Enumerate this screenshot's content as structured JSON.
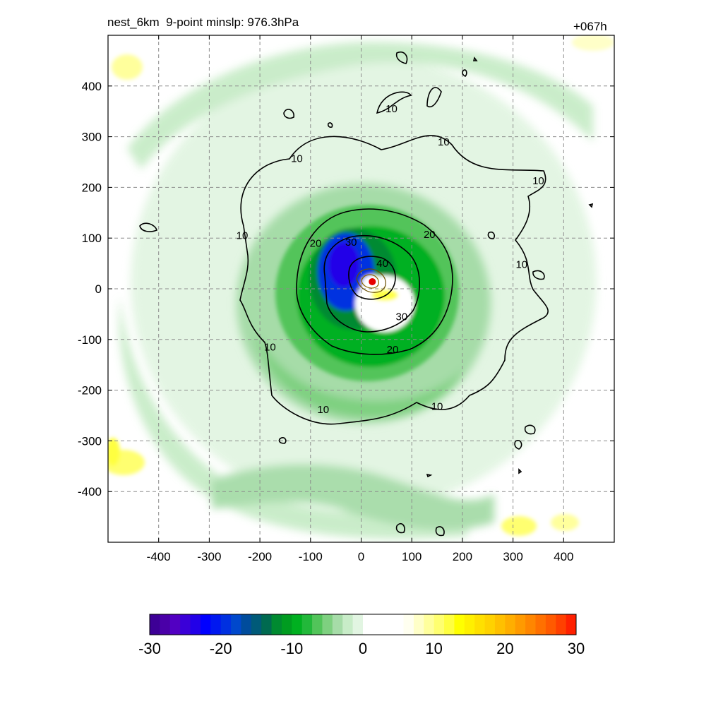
{
  "header": {
    "title": "nest_6km  9-point minslp: 976.3hPa",
    "forecast_hour": "+067h"
  },
  "chart_data": {
    "type": "heatmap",
    "title": "nest_6km  9-point minslp: 976.3hPa",
    "annotation_right": "+067h",
    "min_slp_hPa": 976.3,
    "xlim": [
      -500,
      500
    ],
    "ylim": [
      -500,
      500
    ],
    "x_ticks": [
      -400,
      -300,
      -200,
      -100,
      0,
      100,
      200,
      300,
      400
    ],
    "x_tick_labels": [
      "-400",
      "-300",
      "-200",
      "-100",
      "0",
      "100",
      "200",
      "300",
      "400"
    ],
    "y_ticks": [
      400,
      300,
      200,
      100,
      0,
      -100,
      -200,
      -300,
      -400
    ],
    "y_tick_labels": [
      "400",
      "300",
      "200",
      "100",
      "0",
      "-100",
      "-200",
      "-300",
      "-400"
    ],
    "grid": true,
    "center_marker": {
      "x": 22,
      "y": 14,
      "color": "#e60000"
    },
    "contour_levels": [
      10,
      20,
      30,
      40
    ],
    "contour_labels": [
      {
        "text": "10",
        "x": 60,
        "y": 355
      },
      {
        "text": "10",
        "x": 163,
        "y": 290
      },
      {
        "text": "10",
        "x": -127,
        "y": 257
      },
      {
        "text": "10",
        "x": 350,
        "y": 213
      },
      {
        "text": "10",
        "x": -235,
        "y": 105
      },
      {
        "text": "10",
        "x": 317,
        "y": 48
      },
      {
        "text": "10",
        "x": -180,
        "y": -115
      },
      {
        "text": "10",
        "x": -75,
        "y": -238
      },
      {
        "text": "10",
        "x": 150,
        "y": -232
      },
      {
        "text": "20",
        "x": -90,
        "y": 90
      },
      {
        "text": "20",
        "x": 135,
        "y": 107
      },
      {
        "text": "20",
        "x": 62,
        "y": -120
      },
      {
        "text": "30",
        "x": -20,
        "y": 92
      },
      {
        "text": "30",
        "x": 80,
        "y": -55
      },
      {
        "text": "40",
        "x": 42,
        "y": 50
      }
    ],
    "colorbar": {
      "min": -30,
      "max": 30,
      "tick_values": [
        -30,
        -20,
        -10,
        0,
        10,
        20,
        30
      ],
      "tick_labels": [
        "-30",
        "-20",
        "-10",
        "0",
        "10",
        "20",
        "30"
      ],
      "colors": [
        "#3d0096",
        "#4a00a8",
        "#5200c2",
        "#3a00d8",
        "#2200e8",
        "#0000ff",
        "#0018f0",
        "#0030e0",
        "#0048cc",
        "#004c9c",
        "#005a78",
        "#006a50",
        "#008a30",
        "#009c20",
        "#00b020",
        "#22b83a",
        "#52c45a",
        "#7ed080",
        "#a6dca8",
        "#c8ecc8",
        "#e2f5e2",
        "#ffffff",
        "#ffffff",
        "#ffffff",
        "#ffffff",
        "#fffff0",
        "#ffffc8",
        "#ffff9c",
        "#ffff70",
        "#ffff40",
        "#ffff00",
        "#fff000",
        "#ffe000",
        "#ffd200",
        "#ffc000",
        "#ffae00",
        "#ff9a00",
        "#ff8600",
        "#ff7000",
        "#ff5a00",
        "#ff4000",
        "#ff2000"
      ]
    }
  }
}
